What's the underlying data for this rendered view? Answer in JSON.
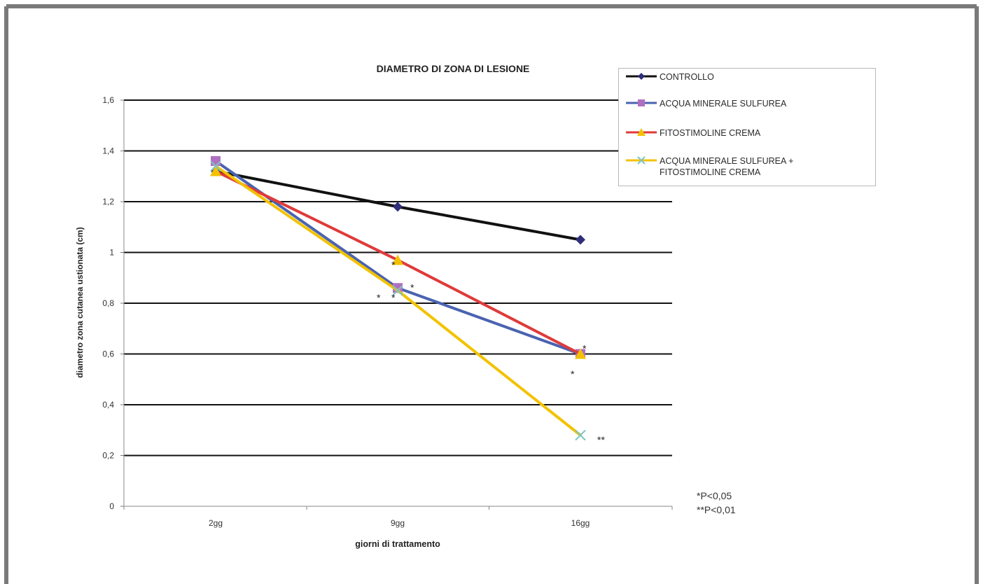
{
  "chart_data": {
    "type": "line",
    "title": "DIAMETRO DI ZONA DI LESIONE",
    "xlabel": "giorni di trattamento",
    "ylabel": "diametro zona cutanea ustionata (cm)",
    "categories": [
      "2gg",
      "9gg",
      "16gg"
    ],
    "ylim": [
      0,
      1.6
    ],
    "yticks": [
      "0",
      "0,2",
      "0,4",
      "0,6",
      "0,8",
      "1",
      "1,2",
      "1,4",
      "1,6"
    ],
    "ytick_values": [
      0,
      0.2,
      0.4,
      0.6,
      0.8,
      1.0,
      1.2,
      1.4,
      1.6
    ],
    "grid": true,
    "legend_position": "top-right",
    "series": [
      {
        "name": "CONTROLLO",
        "values": [
          1.32,
          1.18,
          1.05
        ],
        "color": "#111111",
        "marker": "diamond",
        "marker_color": "#2e2e7a"
      },
      {
        "name": "ACQUA MINERALE SULFUREA",
        "values": [
          1.36,
          0.86,
          0.6
        ],
        "color": "#4a63b0",
        "marker": "square",
        "marker_color": "#b070c0"
      },
      {
        "name": "FITOSTIMOLINE CREMA",
        "values": [
          1.32,
          0.97,
          0.6
        ],
        "color": "#e03a3a",
        "marker": "triangle",
        "marker_color": "#f2c200"
      },
      {
        "name": "ACQUA MINERALE SULFUREA + FITOSTIMOLINE CREMA",
        "values": [
          1.34,
          0.85,
          0.28
        ],
        "color": "#f2c200",
        "marker": "x",
        "marker_color": "#7fc4c4"
      }
    ],
    "annotations": [
      {
        "text": "*",
        "category": "9gg",
        "y": 0.96
      },
      {
        "text": "*",
        "category": "9gg",
        "y": 0.83
      },
      {
        "text": "*",
        "category": "9gg",
        "y": 0.83
      },
      {
        "text": "*",
        "category": "9gg",
        "y": 0.87
      },
      {
        "text": "*",
        "category": "16gg",
        "y": 0.63
      },
      {
        "text": "*",
        "category": "16gg",
        "y": 0.53
      },
      {
        "text": "**",
        "category": "16gg",
        "y": 0.27
      }
    ],
    "notes": [
      "*P<0,05",
      "**P<0,01"
    ]
  }
}
